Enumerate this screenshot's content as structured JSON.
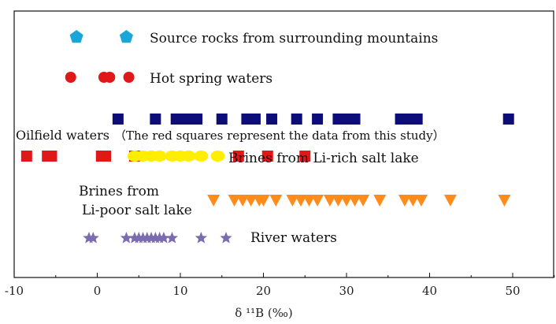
{
  "chart_data": {
    "type": "scatter",
    "xlabel": "δ ¹¹B (‰)",
    "xlim": [
      -10,
      55
    ],
    "x_ticks": [
      -10,
      0,
      10,
      20,
      30,
      40,
      50
    ],
    "grid": false,
    "series": [
      {
        "name": "Source rocks from surrounding mountains",
        "marker": "pentagon",
        "color": "#1aa7d8",
        "x": [
          -2.5,
          3.5
        ]
      },
      {
        "name": "Hot spring waters",
        "marker": "circle",
        "color": "#e01818",
        "x": [
          -3.2,
          0.8,
          1.5,
          3.8
        ]
      },
      {
        "name": "Oilfield waters",
        "marker": "square",
        "color": "#0d0d7a",
        "x": [
          2.5,
          7.0,
          9.5,
          10.5,
          11.0,
          12.0,
          15.0,
          18.0,
          19.0,
          21.0,
          24.0,
          26.5,
          29.0,
          30.0,
          31.0,
          36.5,
          37.5,
          38.5,
          49.5
        ]
      },
      {
        "name": "Oilfield waters (red squares: data from this study)",
        "marker": "square",
        "color": "#e01818",
        "x": [
          -8.5,
          -6.0,
          -5.5,
          0.5,
          1.0,
          4.5,
          17.0,
          20.5,
          25.0
        ]
      },
      {
        "name": "Brines from Li-rich salt lake",
        "marker": "ellipse",
        "color": "#ffee00",
        "x": [
          4.5,
          5.5,
          6.5,
          7.5,
          9.0,
          10.0,
          11.0,
          12.5,
          14.5
        ]
      },
      {
        "name": "Brines from Li-poor salt lake",
        "marker": "triangle-down",
        "color": "#ff8c1a",
        "x": [
          14.0,
          16.5,
          17.5,
          18.5,
          19.5,
          20.0,
          21.5,
          23.5,
          24.5,
          25.5,
          26.5,
          28.0,
          29.0,
          30.0,
          31.0,
          32.0,
          34.0,
          37.0,
          38.0,
          39.0,
          42.5,
          49.0
        ]
      },
      {
        "name": "River waters",
        "marker": "star",
        "color": "#7b6bb0",
        "x": [
          -1.0,
          -0.5,
          3.5,
          4.5,
          5.0,
          5.5,
          6.0,
          6.5,
          7.0,
          7.5,
          8.0,
          9.0,
          12.5,
          15.5
        ]
      }
    ]
  },
  "labels": {
    "source_rocks": "Source rocks from surrounding mountains",
    "hot_spring": "Hot spring waters",
    "oilfield": "Oilfield waters",
    "oilfield_note": "（The red squares represent the data from this study）",
    "li_rich": "Brines from Li-rich salt lake",
    "li_poor_line1": "Brines from",
    "li_poor_line2": "Li-poor salt lake",
    "river": "River waters",
    "xaxis": "δ ¹¹B (‰)"
  },
  "tick_labels": [
    "-10",
    "0",
    "10",
    "20",
    "30",
    "40",
    "50"
  ]
}
